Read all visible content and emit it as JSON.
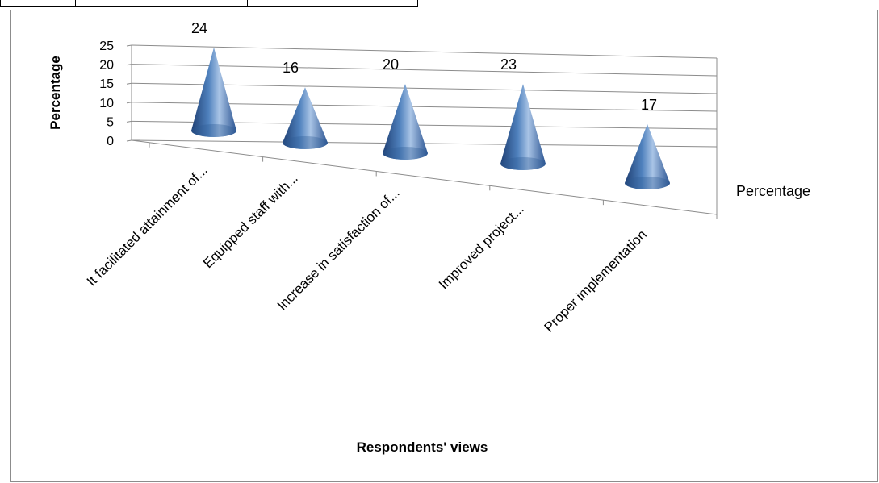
{
  "chart_data": {
    "type": "bar",
    "shape": "3d-cone",
    "categories": [
      "It facilitated attainment of...",
      "Equipped staff with...",
      "Increase  in satisfaction of...",
      "Improved project...",
      "Proper implementation"
    ],
    "series": [
      {
        "name": "Percentage",
        "values": [
          24,
          16,
          20,
          23,
          17
        ]
      }
    ],
    "ylabel": "Percentage",
    "xlabel": "Respondents' views",
    "ylim": [
      0,
      25
    ],
    "yticks": [
      "0",
      "5",
      "10",
      "15",
      "20",
      "25"
    ],
    "data_labels": [
      "24",
      "16",
      "20",
      "23",
      "17"
    ],
    "legend": {
      "position": "right",
      "entries": [
        "Percentage"
      ]
    },
    "grid": true,
    "colors": {
      "cone_dark": "#1f3f73",
      "cone_mid": "#4f81bd",
      "cone_light": "#a9c4e6"
    }
  }
}
